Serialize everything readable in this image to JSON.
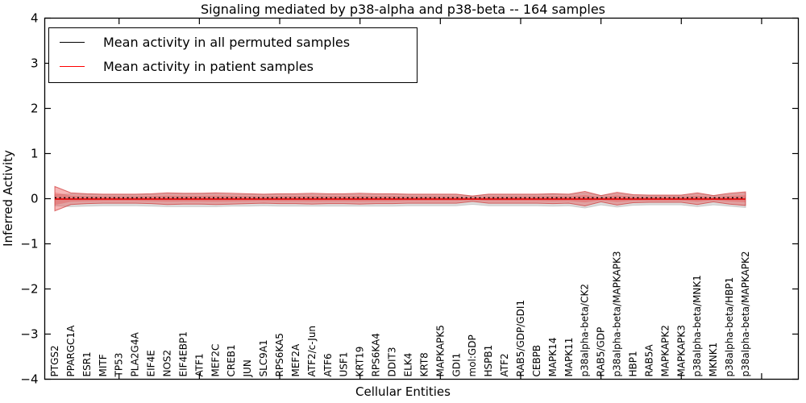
{
  "chart_data": {
    "type": "line",
    "title": "Signaling mediated by p38-alpha and p38-beta -- 164 samples",
    "xlabel": "Cellular Entities",
    "ylabel": "Inferred Activity",
    "ylim": [
      -4,
      4
    ],
    "grid": false,
    "ytick_labels": [
      "4",
      "3",
      "2",
      "1",
      "0",
      "−1",
      "−2",
      "−3",
      "−4"
    ],
    "ytick_values": [
      4,
      3,
      2,
      1,
      0,
      -1,
      -2,
      -3,
      -4
    ],
    "xtick_entity_positions": [
      4,
      9,
      14,
      19,
      24,
      29,
      34,
      39,
      44
    ],
    "legend": {
      "position": "upper left",
      "entries": [
        {
          "label": "Mean activity in all permuted samples",
          "color": "#000000",
          "style": "solid"
        },
        {
          "label": "Mean activity in patient samples",
          "color": "#ff0000",
          "style": "solid"
        }
      ]
    },
    "categories": [
      "PTGS2",
      "PPARGC1A",
      "ESR1",
      "MITF",
      "TP53",
      "PLA2G4A",
      "EIF4E",
      "NOS2",
      "EIF4EBP1",
      "ATF1",
      "MEF2C",
      "CREB1",
      "JUN",
      "SLC9A1",
      "RPS6KA5",
      "MEF2A",
      "ATF2/c-Jun",
      "ATF6",
      "USF1",
      "KRT19",
      "RPS6KA4",
      "DDIT3",
      "ELK4",
      "KRT8",
      "MAPKAPK5",
      "GDI1",
      "mol:GDP",
      "HSPB1",
      "ATF2",
      "RAB5/GDP/GDI1",
      "CEBPB",
      "MAPK14",
      "MAPK11",
      "p38alpha-beta/CK2",
      "RAB5/GDP",
      "p38alpha-beta/MAPKAPK3",
      "HBP1",
      "RAB5A",
      "MAPKAPK2",
      "MAPKAPK3",
      "p38alpha-beta/MNK1",
      "MKNK1",
      "p38alpha-beta/HBP1",
      "p38alpha-beta/MAPKAPK2"
    ],
    "series": [
      {
        "name": "Mean activity in all permuted samples",
        "color": "#000000",
        "line": "dotted",
        "mean_value": 0.02
      },
      {
        "name": "Mean activity in patient samples",
        "color": "#e31a1a",
        "line": "solid",
        "mean_value": 0.0
      }
    ],
    "bands": {
      "patient_halfwidth": [
        0.27,
        0.13,
        0.11,
        0.1,
        0.1,
        0.1,
        0.11,
        0.13,
        0.12,
        0.12,
        0.13,
        0.12,
        0.11,
        0.1,
        0.11,
        0.11,
        0.12,
        0.11,
        0.11,
        0.12,
        0.11,
        0.11,
        0.1,
        0.1,
        0.1,
        0.1,
        0.06,
        0.1,
        0.1,
        0.1,
        0.1,
        0.11,
        0.1,
        0.16,
        0.07,
        0.14,
        0.09,
        0.08,
        0.08,
        0.08,
        0.13,
        0.07,
        0.12,
        0.15
      ],
      "permuted_halfwidth": [
        0.12,
        0.14,
        0.13,
        0.12,
        0.12,
        0.12,
        0.13,
        0.14,
        0.14,
        0.14,
        0.14,
        0.13,
        0.13,
        0.12,
        0.13,
        0.13,
        0.13,
        0.13,
        0.13,
        0.13,
        0.13,
        0.13,
        0.12,
        0.12,
        0.12,
        0.12,
        0.09,
        0.12,
        0.12,
        0.12,
        0.12,
        0.13,
        0.12,
        0.17,
        0.1,
        0.15,
        0.11,
        0.1,
        0.1,
        0.1,
        0.14,
        0.1,
        0.13,
        0.16
      ]
    },
    "colors": {
      "patient_band_fill": "#e84040",
      "patient_band_edge": "#cc2a2a",
      "patient_mean_line": "#e31a1a",
      "permuted_band_fill": "#aaaaaa",
      "permuted_mean_line": "#000000",
      "axis": "#000000",
      "background": "#ffffff"
    }
  }
}
